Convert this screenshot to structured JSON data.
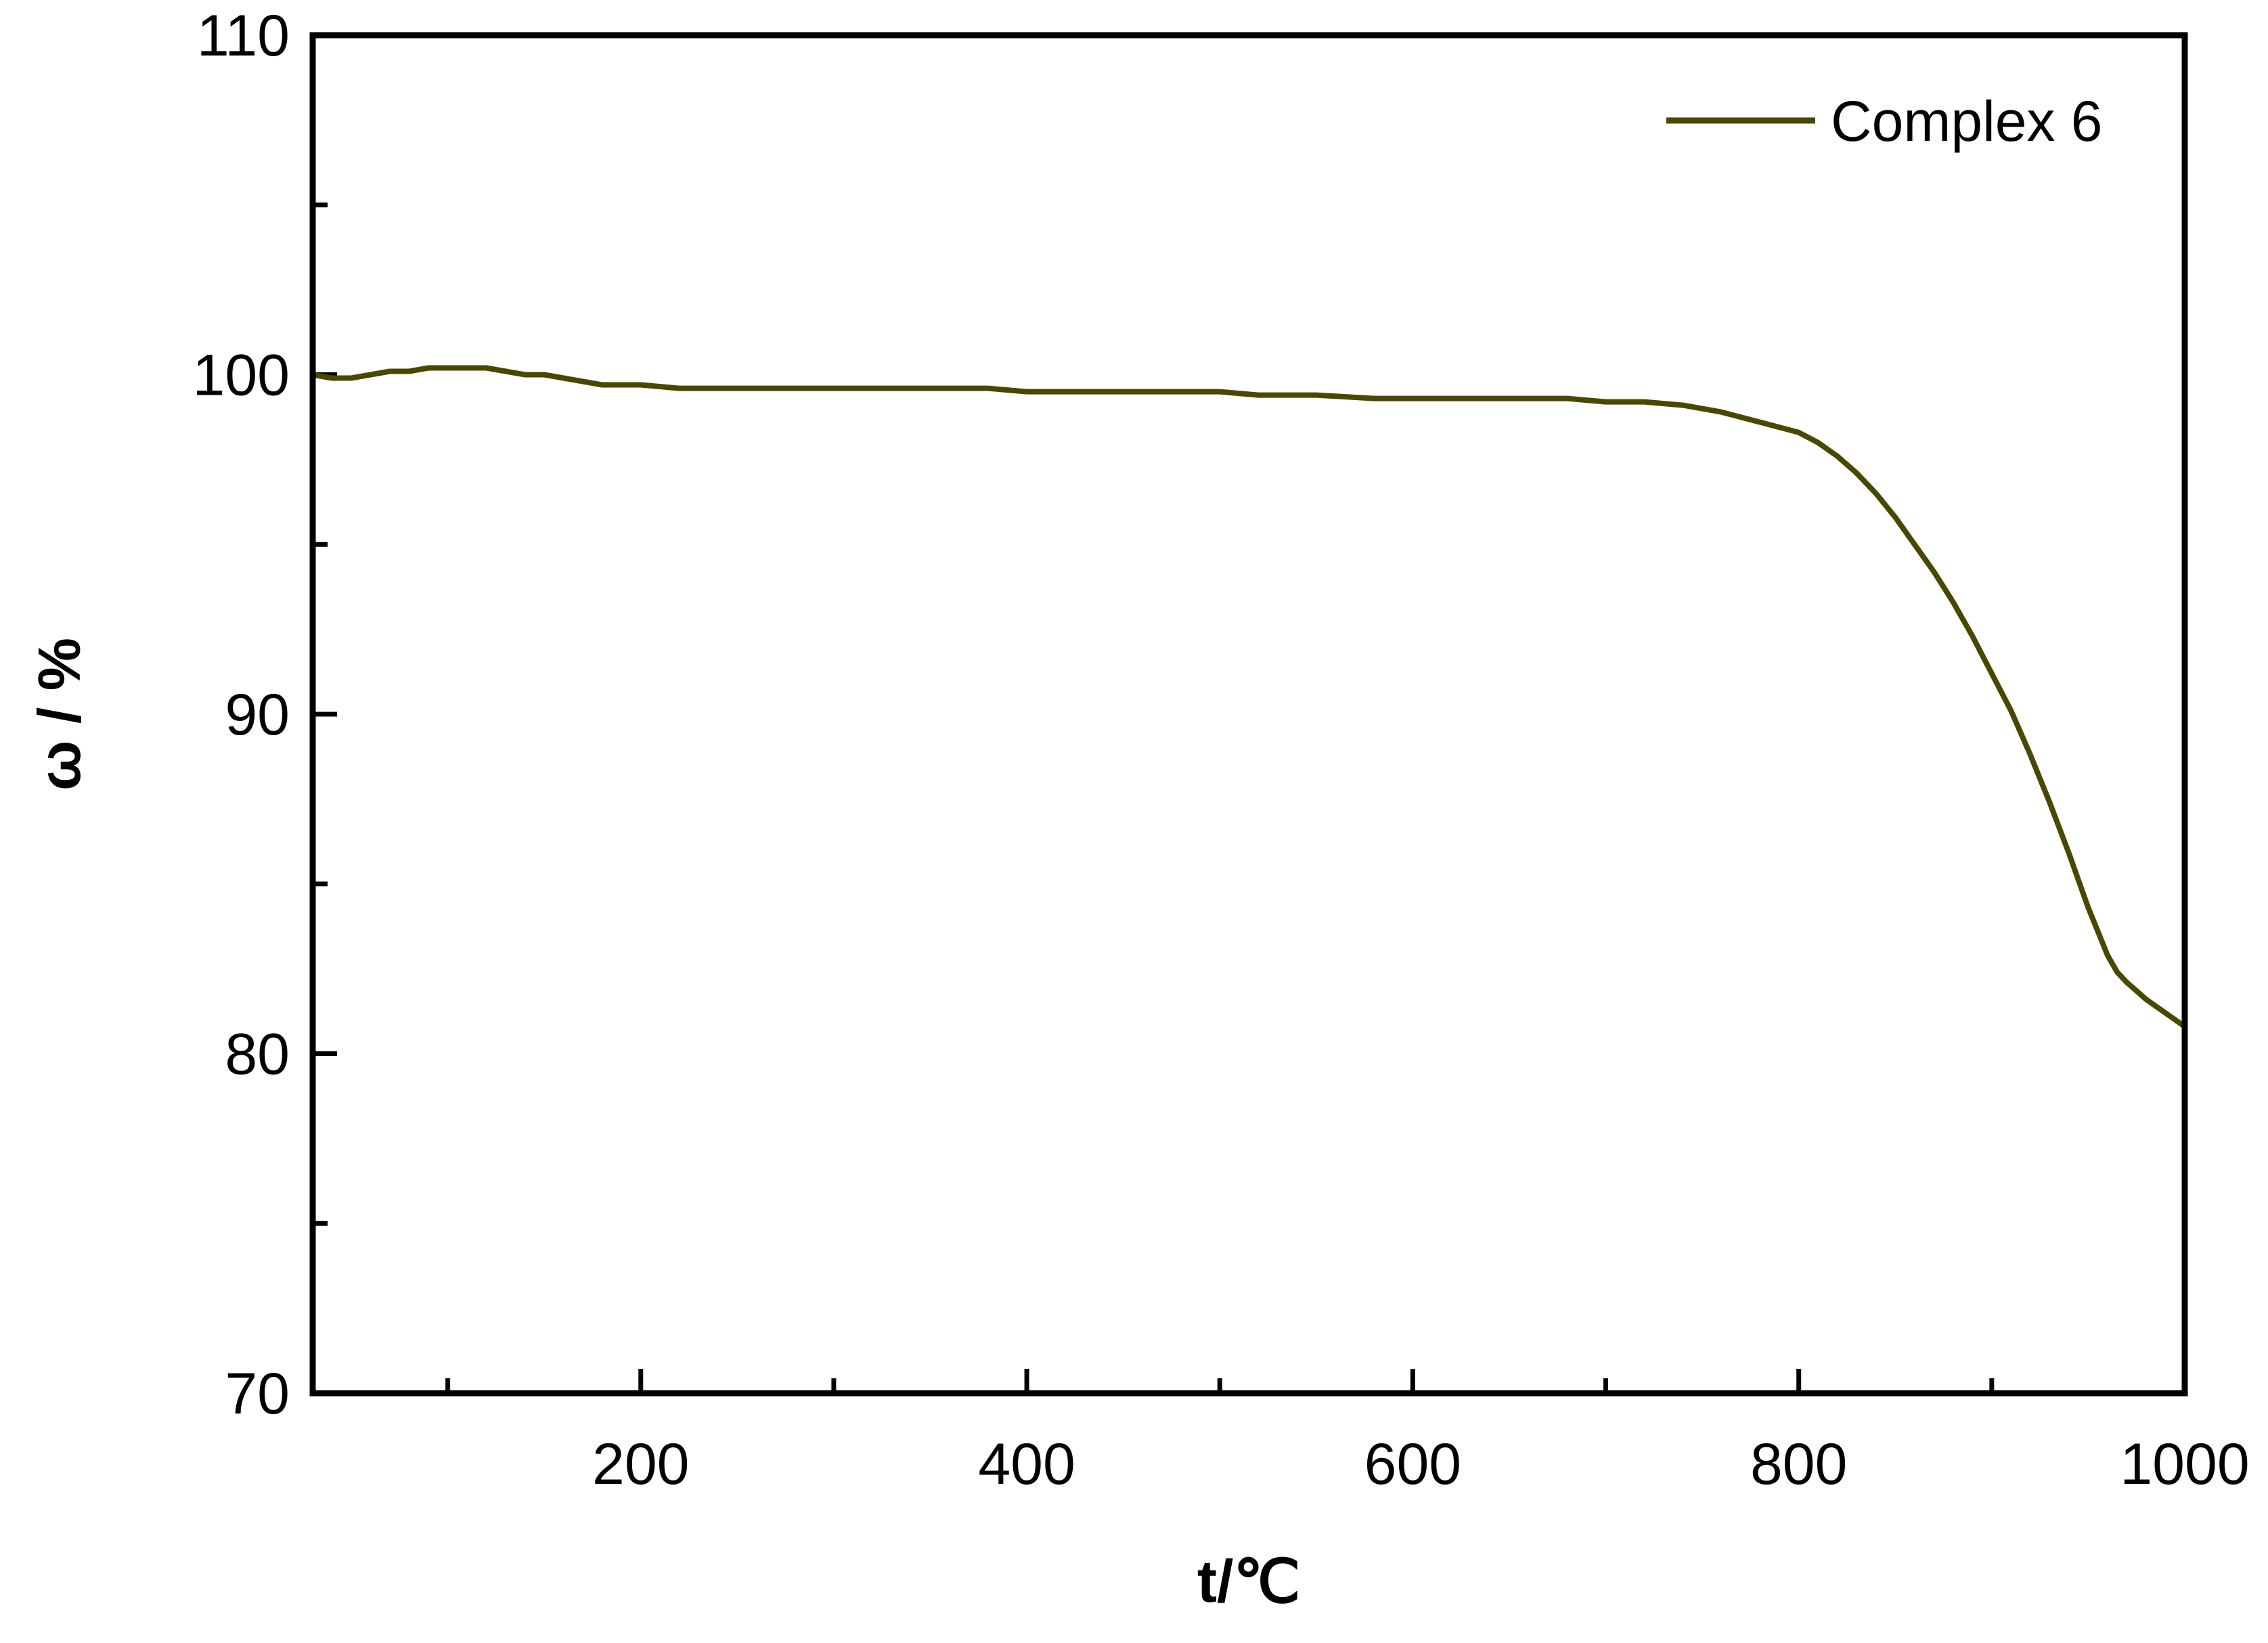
{
  "chart_data": {
    "type": "line",
    "title": "",
    "xlabel": "t/℃",
    "ylabel": "ω / %",
    "xlim": [
      30,
      1000
    ],
    "ylim": [
      70,
      110
    ],
    "xticks": [
      200,
      400,
      600,
      800,
      1000
    ],
    "xminor": [
      100,
      300,
      500,
      700,
      900
    ],
    "yticks": [
      70,
      80,
      90,
      100,
      110
    ],
    "yminor": [
      75,
      85,
      95,
      105
    ],
    "grid": false,
    "legend_position": "top-right",
    "series": [
      {
        "name": "Complex 6",
        "color": "#4a4700",
        "x": [
          30,
          40,
          50,
          60,
          70,
          80,
          90,
          100,
          110,
          120,
          130,
          140,
          150,
          160,
          170,
          180,
          200,
          220,
          250,
          300,
          350,
          380,
          400,
          450,
          500,
          520,
          550,
          580,
          600,
          650,
          680,
          700,
          720,
          740,
          760,
          780,
          800,
          810,
          820,
          830,
          840,
          850,
          860,
          870,
          880,
          890,
          900,
          910,
          920,
          930,
          940,
          950,
          955,
          960,
          965,
          970,
          980,
          990,
          1000
        ],
        "y": [
          100.0,
          99.9,
          99.9,
          100.0,
          100.1,
          100.1,
          100.2,
          100.2,
          100.2,
          100.2,
          100.1,
          100.0,
          100.0,
          99.9,
          99.8,
          99.7,
          99.7,
          99.6,
          99.6,
          99.6,
          99.6,
          99.6,
          99.5,
          99.5,
          99.5,
          99.4,
          99.4,
          99.3,
          99.3,
          99.3,
          99.3,
          99.2,
          99.2,
          99.1,
          98.9,
          98.6,
          98.3,
          98.0,
          97.6,
          97.1,
          96.5,
          95.8,
          95.0,
          94.2,
          93.3,
          92.3,
          91.2,
          90.1,
          88.8,
          87.4,
          85.9,
          84.3,
          83.6,
          82.9,
          82.4,
          82.1,
          81.6,
          81.2,
          80.8
        ]
      }
    ]
  }
}
